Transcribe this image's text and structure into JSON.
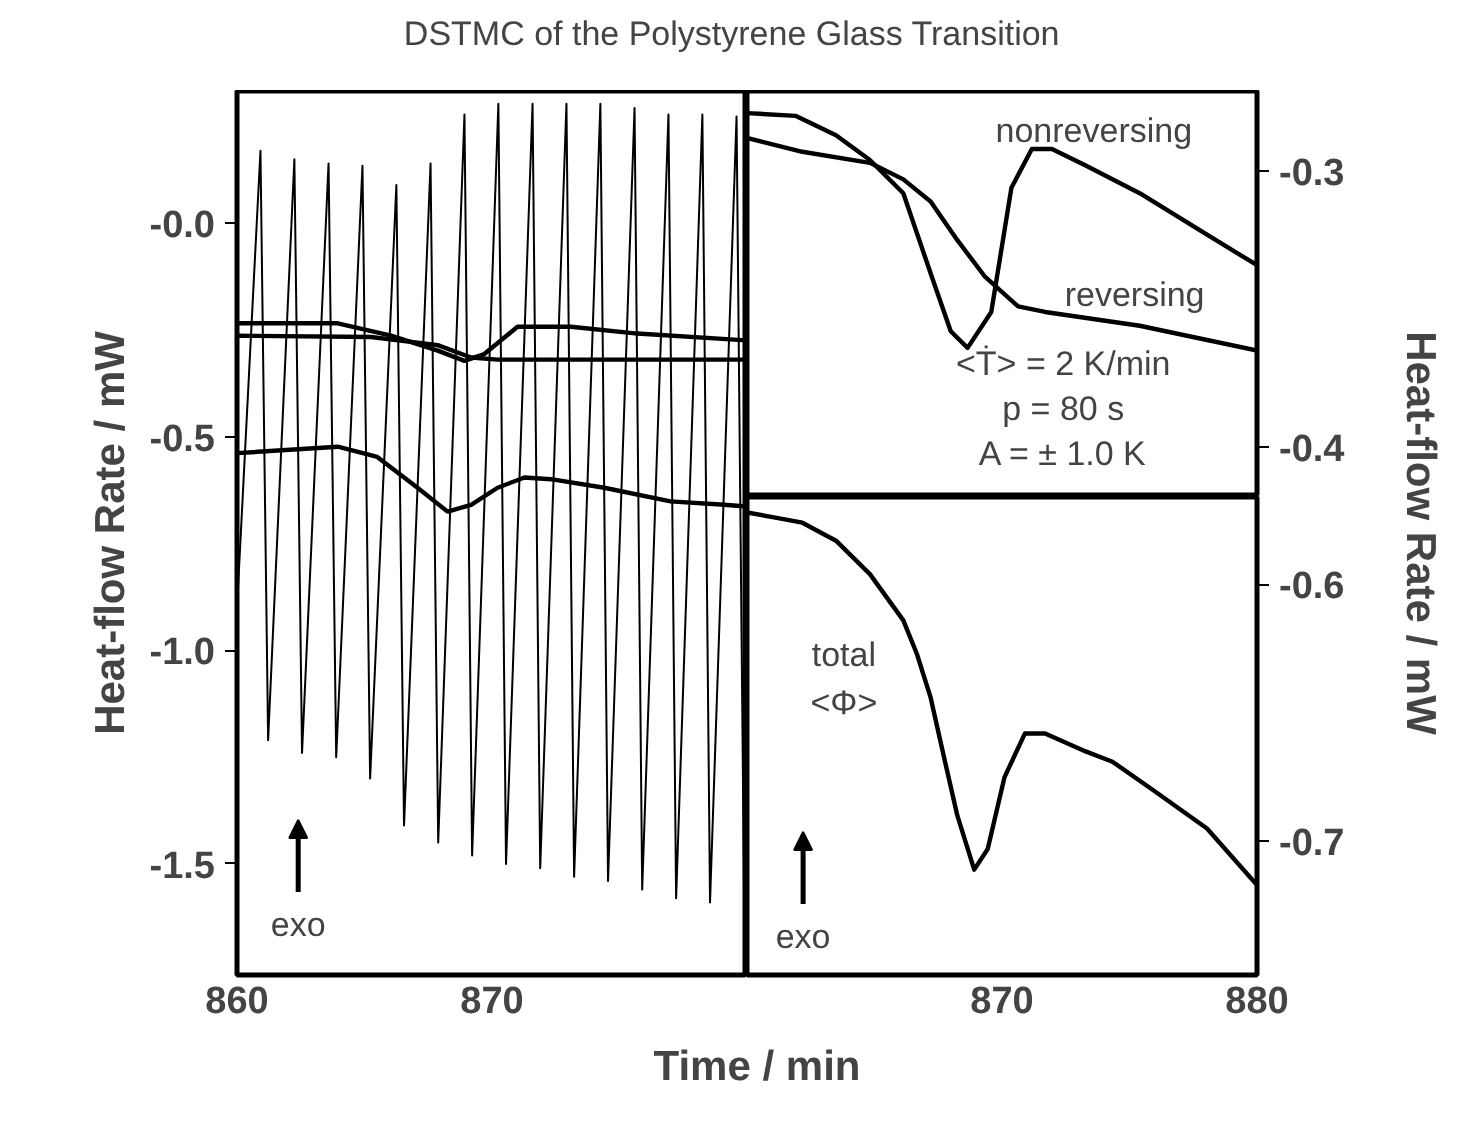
{
  "chart_data": [
    {
      "type": "line",
      "title": "DSTMC of the Polystyrene Glass Transition",
      "xlabel": "Time / min",
      "ylabel": "Heat-flow Rate / mW",
      "xlim": [
        860,
        880
      ],
      "ylim": [
        -1.76,
        0.31
      ],
      "xticks": [
        860,
        870
      ],
      "yticks": [
        {
          "value": 0,
          "label": "-0.0"
        },
        -0.5,
        {
          "value": -1,
          "label": "-1.0"
        },
        -1.5
      ],
      "grid": false,
      "series": [
        {
          "color": "#000000",
          "x": [
            860.0,
            860.92,
            861.22,
            862.25,
            862.55,
            863.59,
            863.89,
            864.92,
            865.22,
            866.25,
            866.55,
            867.59,
            867.89,
            868.92,
            869.22,
            870.25,
            870.55,
            871.59,
            871.89,
            872.92,
            873.22,
            874.25,
            874.55,
            875.59,
            875.89,
            876.92,
            877.22,
            878.25,
            878.55,
            879.59,
            879.89
          ],
          "values": [
            -0.9,
            0.17,
            -1.21,
            0.15,
            -1.24,
            0.14,
            -1.25,
            0.135,
            -1.3,
            0.09,
            -1.41,
            0.14,
            -1.45,
            0.255,
            -1.48,
            0.28,
            -1.5,
            0.28,
            -1.51,
            0.28,
            -1.53,
            0.28,
            -1.54,
            0.27,
            -1.56,
            0.255,
            -1.58,
            0.255,
            -1.59,
            0.25,
            -1.6
          ]
        },
        {
          "color": "#000000",
          "x": [
            860,
            863.95,
            866.04,
            867.87,
            868.92,
            869.7,
            871.0,
            873.1,
            875.7,
            880
          ],
          "values": [
            -0.234,
            -0.234,
            -0.263,
            -0.298,
            -0.322,
            -0.306,
            -0.242,
            -0.242,
            -0.258,
            -0.274
          ]
        },
        {
          "color": "#000000",
          "x": [
            860,
            865.25,
            867.87,
            869.18,
            870.22,
            880
          ],
          "values": [
            -0.263,
            -0.266,
            -0.285,
            -0.314,
            -0.319,
            -0.319
          ]
        },
        {
          "color": "#000000",
          "x": [
            860,
            863.95,
            865.5,
            867.08,
            868.26,
            869.18,
            870.22,
            871.27,
            872.31,
            874.4,
            877.0,
            879.1,
            880
          ],
          "values": [
            -0.538,
            -0.523,
            -0.547,
            -0.619,
            -0.675,
            -0.659,
            -0.619,
            -0.595,
            -0.599,
            -0.619,
            -0.651,
            -0.659,
            -0.663
          ]
        }
      ],
      "annotations": [
        "exo"
      ]
    },
    {
      "type": "line",
      "ylabel": "Heat-flow Rate / mW",
      "xlim": [
        860,
        880
      ],
      "ylim": [
        -0.418,
        -0.271
      ],
      "yticks": [
        -0.3,
        -0.4
      ],
      "tick_labels": "y",
      "grid": false,
      "series": [
        {
          "color": "#000000",
          "x": [
            860,
            861.9,
            863.49,
            864.82,
            866.13,
            867.2,
            867.99,
            868.65,
            869.58,
            870.37,
            871.17,
            871.96,
            873.28,
            875.4,
            878.04,
            879.63,
            880
          ],
          "values": [
            -0.279,
            -0.28,
            -0.287,
            -0.296,
            -0.308,
            -0.337,
            -0.358,
            -0.364,
            -0.351,
            -0.306,
            -0.292,
            -0.292,
            -0.298,
            -0.308,
            -0.323,
            -0.332,
            -0.334
          ]
        },
        {
          "color": "#000000",
          "x": [
            860,
            862.17,
            864.82,
            866.13,
            867.2,
            868.25,
            869.31,
            870.63,
            871.69,
            875.4,
            880
          ],
          "values": [
            -0.288,
            -0.293,
            -0.297,
            -0.303,
            -0.311,
            -0.325,
            -0.338,
            -0.349,
            -0.351,
            -0.356,
            -0.365
          ]
        }
      ],
      "annotations": [
        "nonreversing",
        "reversing",
        "<Ṫ> = 2 K/min",
        "p = 80 s",
        "A = ± 1.0 K"
      ]
    },
    {
      "type": "line",
      "xlim": [
        860,
        880
      ],
      "ylim": [
        -0.752,
        -0.566
      ],
      "xticks": [
        870,
        880
      ],
      "yticks": [
        -0.6,
        -0.7
      ],
      "grid": false,
      "series": [
        {
          "color": "#000000",
          "x": [
            860,
            861.11,
            862.17,
            863.49,
            864.82,
            866.13,
            866.66,
            867.2,
            867.72,
            868.25,
            868.91,
            869.44,
            870.1,
            870.9,
            871.69,
            873.28,
            874.33,
            875.92,
            878.04,
            880
          ],
          "values": [
            -0.572,
            -0.574,
            -0.576,
            -0.583,
            -0.596,
            -0.614,
            -0.627,
            -0.644,
            -0.667,
            -0.69,
            -0.711,
            -0.703,
            -0.675,
            -0.658,
            -0.658,
            -0.665,
            -0.669,
            -0.68,
            -0.695,
            -0.717
          ]
        }
      ],
      "annotations": [
        "total",
        "<Φ>",
        "exo"
      ]
    }
  ]
}
